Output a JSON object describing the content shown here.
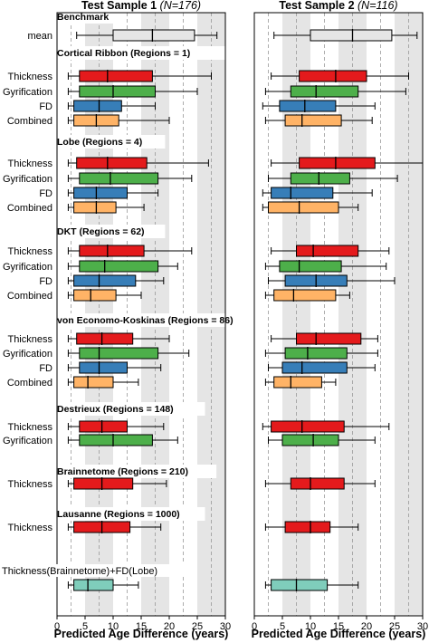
{
  "chart_data": {
    "type": "boxplot",
    "xlabel": "Predicted Age Difference (years)",
    "xlim": [
      0,
      30
    ],
    "xticks": [
      0,
      5,
      10,
      15,
      20,
      25,
      30
    ],
    "xtick_labels": [
      "0",
      "5",
      "10",
      "15",
      "20",
      "25",
      "30"
    ],
    "shaded_bands": [
      [
        5,
        10
      ],
      [
        15,
        20
      ],
      [
        25,
        30
      ]
    ],
    "dashed_lines": [
      2.5,
      7.5,
      12.5,
      17.5,
      22.5,
      27.5
    ],
    "colors": {
      "mean": "#e6e6e6",
      "Thickness": "#e41a1c",
      "Gyrification": "#4daf4a",
      "FD": "#377eb8",
      "Combined": "#ffb366",
      "Thickness(Brainnetome)+FD(Lobe)": "#7fcdbb"
    },
    "panels": [
      {
        "title_main": "Test Sample 1",
        "title_n": "(N=176)"
      },
      {
        "title_main": "Test Sample 2",
        "title_n": "(N=116)"
      }
    ],
    "groups": [
      {
        "title": "Benchmark",
        "rows": [
          {
            "label": "mean",
            "s1": [
              3.5,
              10,
              17,
              24.5,
              28.5
            ],
            "s2": [
              3.5,
              10,
              17.5,
              24.5,
              29
            ]
          }
        ]
      },
      {
        "title": "Cortical Ribbon (Regions = 1)",
        "rows": [
          {
            "label": "Thickness",
            "s1": [
              2,
              4,
              9,
              17,
              27.5
            ],
            "s2": [
              3,
              8,
              14.5,
              20,
              27.5
            ]
          },
          {
            "label": "Gyrification",
            "s1": [
              2,
              4,
              10,
              17.5,
              25
            ],
            "s2": [
              2,
              6.5,
              11,
              18.5,
              27
            ]
          },
          {
            "label": "FD",
            "s1": [
              2,
              3,
              7.5,
              11.5,
              17.5
            ],
            "s2": [
              1.5,
              4.5,
              9,
              14.5,
              21.5
            ]
          },
          {
            "label": "Combined",
            "s1": [
              2,
              3,
              7,
              11,
              20
            ],
            "s2": [
              2,
              5.5,
              8.5,
              15.5,
              21
            ]
          }
        ]
      },
      {
        "title": "Lobe (Regions = 4)",
        "rows": [
          {
            "label": "Thickness",
            "s1": [
              2,
              3.5,
              9,
              16,
              27
            ],
            "s2": [
              3,
              8,
              14.5,
              21.5,
              30
            ]
          },
          {
            "label": "Gyrification",
            "s1": [
              2,
              4,
              9.5,
              18,
              24
            ],
            "s2": [
              2.5,
              6.5,
              11.5,
              17,
              25.5
            ]
          },
          {
            "label": "FD",
            "s1": [
              2,
              3,
              7,
              12.5,
              18
            ],
            "s2": [
              1.5,
              3,
              6.5,
              14,
              21
            ]
          },
          {
            "label": "Combined",
            "s1": [
              2,
              3,
              7,
              10.5,
              15.5
            ],
            "s2": [
              1.5,
              2.5,
              8,
              15,
              18.5
            ]
          }
        ]
      },
      {
        "title": "DKT (Regions = 62)",
        "rows": [
          {
            "label": "Thickness",
            "s1": [
              2,
              4,
              9,
              15.5,
              24
            ],
            "s2": [
              3,
              7.5,
              10.5,
              18.5,
              24
            ]
          },
          {
            "label": "Gyrification",
            "s1": [
              2,
              4,
              8.5,
              18,
              21.5
            ],
            "s2": [
              2,
              4.5,
              8,
              15.5,
              23.5
            ]
          },
          {
            "label": "FD",
            "s1": [
              2,
              3,
              7.5,
              14,
              19
            ],
            "s2": [
              2.5,
              5.5,
              11,
              16.5,
              25
            ]
          },
          {
            "label": "Combined",
            "s1": [
              2,
              3,
              6,
              10.5,
              15
            ],
            "s2": [
              2,
              3.5,
              7,
              14.5,
              17
            ]
          }
        ]
      },
      {
        "title": "von Economo-Koskinas (Regions = 86)",
        "rows": [
          {
            "label": "Thickness",
            "s1": [
              2,
              3.5,
              8,
              13.5,
              20
            ],
            "s2": [
              3,
              7.5,
              11,
              19,
              22
            ]
          },
          {
            "label": "Gyrification",
            "s1": [
              2,
              4,
              7.5,
              18,
              23.5
            ],
            "s2": [
              2,
              5.5,
              9.5,
              16.5,
              22
            ]
          },
          {
            "label": "FD",
            "s1": [
              2,
              4,
              7.5,
              12.5,
              18.5
            ],
            "s2": [
              2.5,
              5,
              8.5,
              16.5,
              21.5
            ]
          },
          {
            "label": "Combined",
            "s1": [
              2,
              3,
              5.5,
              10,
              14.5
            ],
            "s2": [
              2,
              3.5,
              6.5,
              12,
              14.5
            ]
          }
        ]
      },
      {
        "title": "Destrieux (Regions = 148)",
        "rows": [
          {
            "label": "Thickness",
            "s1": [
              2,
              4,
              8,
              12.5,
              19
            ],
            "s2": [
              1.5,
              3,
              8.5,
              16,
              24
            ]
          },
          {
            "label": "Gyrification",
            "s1": [
              2,
              4,
              10,
              17,
              21.5
            ],
            "s2": [
              2.5,
              5,
              10.5,
              15,
              21.5
            ]
          }
        ]
      },
      {
        "title": "Brainnetome (Regions = 210)",
        "rows": [
          {
            "label": "Thickness",
            "s1": [
              2,
              3,
              8,
              13.5,
              19.5
            ],
            "s2": [
              2,
              6.5,
              10,
              16,
              21.5
            ]
          }
        ]
      },
      {
        "title": "Lausanne (Regions = 1000)",
        "rows": [
          {
            "label": "Thickness",
            "s1": [
              2,
              3,
              8,
              13,
              18.5
            ],
            "s2": [
              2,
              5.5,
              10,
              13.5,
              18.5
            ]
          }
        ]
      },
      {
        "title": "",
        "rows": [
          {
            "label": "Thickness(Brainnetome)+FD(Lobe)",
            "s1": [
              2,
              3,
              5.5,
              10,
              14.5
            ],
            "s2": [
              2,
              3,
              7.5,
              13,
              18.5
            ]
          }
        ]
      }
    ]
  }
}
